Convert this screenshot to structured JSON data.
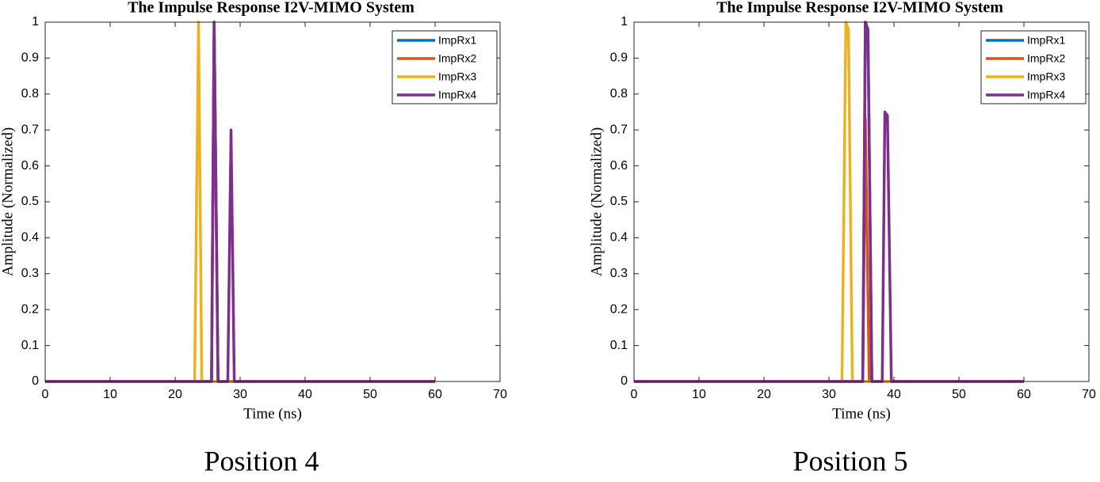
{
  "chart_data": [
    {
      "type": "line",
      "title": "The Impulse Response I2V-MIMO System",
      "xlabel": "Time (ns)",
      "ylabel": "Amplitude (Normalized)",
      "caption": "Position 4",
      "xlim": [
        0,
        70
      ],
      "xticks": [
        0,
        10,
        20,
        30,
        40,
        50,
        60,
        70
      ],
      "ylim": [
        0,
        1
      ],
      "yticks": [
        0,
        0.1,
        0.2,
        0.3,
        0.4,
        0.5,
        0.6,
        0.7,
        0.8,
        0.9,
        1
      ],
      "legend": "northeast",
      "series": [
        {
          "name": "ImpRx1",
          "color": "#0072bd",
          "x": [
            0,
            25.6,
            26,
            26.6,
            60
          ],
          "values": [
            0,
            0,
            1,
            0,
            0
          ]
        },
        {
          "name": "ImpRx2",
          "color": "#d95319",
          "x": [
            0,
            25.6,
            26,
            26.6,
            60
          ],
          "values": [
            0,
            0,
            1,
            0,
            0
          ]
        },
        {
          "name": "ImpRx3",
          "color": "#edb120",
          "x": [
            0,
            23,
            23.6,
            24.1,
            60
          ],
          "values": [
            0,
            0,
            1,
            0,
            0
          ]
        },
        {
          "name": "ImpRx4",
          "color": "#7e2f8e",
          "x": [
            0,
            25.6,
            26,
            26.6,
            28.1,
            28.6,
            29.1,
            60
          ],
          "values": [
            0,
            0,
            1,
            0,
            0,
            0.7,
            0,
            0
          ]
        }
      ]
    },
    {
      "type": "line",
      "title": "The Impulse Response I2V-MIMO System",
      "xlabel": "Time (ns)",
      "ylabel": "Amplitude (Normalized)",
      "caption": "Position 5",
      "xlim": [
        0,
        70
      ],
      "xticks": [
        0,
        10,
        20,
        30,
        40,
        50,
        60,
        70
      ],
      "ylim": [
        0,
        1
      ],
      "yticks": [
        0,
        0.1,
        0.2,
        0.3,
        0.4,
        0.5,
        0.6,
        0.7,
        0.8,
        0.9,
        1
      ],
      "legend": "northeast",
      "series": [
        {
          "name": "ImpRx1",
          "color": "#0072bd",
          "x": [
            0,
            35.2,
            35.6,
            36,
            36.6,
            60
          ],
          "values": [
            0,
            0,
            1,
            0.98,
            0,
            0
          ]
        },
        {
          "name": "ImpRx2",
          "color": "#d95319",
          "x": [
            0,
            35.2,
            35.6,
            36.2,
            60
          ],
          "values": [
            0,
            0,
            0.73,
            0,
            0
          ]
        },
        {
          "name": "ImpRx3",
          "color": "#edb120",
          "x": [
            0,
            32,
            32.6,
            33,
            33.6,
            60
          ],
          "values": [
            0,
            0,
            1,
            0.98,
            0,
            0
          ]
        },
        {
          "name": "ImpRx4",
          "color": "#7e2f8e",
          "x": [
            0,
            35.2,
            35.6,
            36,
            36.6,
            38.2,
            38.6,
            39,
            39.6,
            60
          ],
          "values": [
            0,
            0,
            1,
            0.98,
            0,
            0,
            0.75,
            0.74,
            0,
            0
          ]
        }
      ]
    }
  ]
}
